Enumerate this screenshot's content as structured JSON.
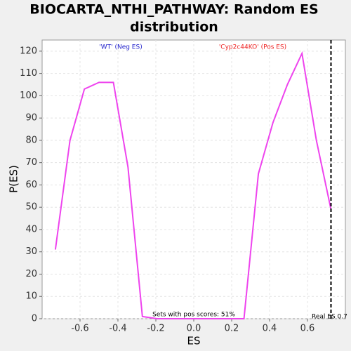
{
  "chart_data": {
    "type": "line",
    "title": "BIOCARTA_NTHI_PATHWAY: Random ES distribution",
    "title_lines": [
      "BIOCARTA_NTHI_PATHWAY: Random ES",
      "distribution"
    ],
    "x_label": "ES",
    "y_label": "P(ES)",
    "x": [
      -0.73,
      -0.653,
      -0.577,
      -0.5,
      -0.424,
      -0.347,
      -0.271,
      -0.194,
      -0.118,
      -0.041,
      0.035,
      0.112,
      0.189,
      0.265,
      0.341,
      0.418,
      0.494,
      0.571,
      0.647,
      0.724
    ],
    "series": [
      {
        "name": "Random ES",
        "color": "#ee44ee",
        "values": [
          31,
          80,
          103,
          106,
          106,
          68,
          1,
          0,
          0,
          0,
          0,
          0,
          0,
          0,
          65,
          88,
          105,
          119,
          80,
          49
        ]
      }
    ],
    "xlim": [
      -0.8,
      0.8
    ],
    "xticks": [
      -0.6,
      -0.4,
      -0.2,
      0.0,
      0.2,
      0.4,
      0.6
    ],
    "ylim": [
      0,
      125
    ],
    "yticks": [
      0,
      10,
      20,
      30,
      40,
      50,
      60,
      70,
      80,
      90,
      100,
      110,
      120
    ],
    "grid": true,
    "real_es": 0.724,
    "real_es_label": "Real ES 0.7",
    "neg_label": "'WT' (Neg ES)",
    "neg_color": "#2222cc",
    "pos_label": "'Cyp2c44KO' (Pos ES)",
    "pos_color": "#ee2222",
    "pos_scores_label": "Sets with pos scores: 51%"
  }
}
